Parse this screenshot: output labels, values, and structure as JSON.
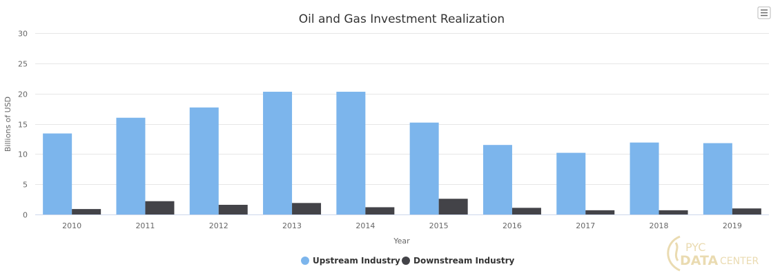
{
  "chart_data": {
    "type": "bar",
    "title": "Oil and Gas Investment Realization",
    "xlabel": "Year",
    "ylabel": "Billions of USD",
    "ylim": [
      0,
      30
    ],
    "yticks": [
      0,
      5,
      10,
      15,
      20,
      25,
      30
    ],
    "grid": true,
    "legend_position": "bottom-center",
    "categories": [
      "2010",
      "2011",
      "2012",
      "2013",
      "2014",
      "2015",
      "2016",
      "2017",
      "2018",
      "2019"
    ],
    "series": [
      {
        "name": "Upstream Industry",
        "color": "#7cb5ec",
        "values": [
          13.4,
          16.0,
          17.7,
          20.3,
          20.3,
          15.2,
          11.5,
          10.2,
          11.9,
          11.8
        ]
      },
      {
        "name": "Downstream Industry",
        "color": "#434348",
        "values": [
          0.9,
          2.2,
          1.6,
          1.9,
          1.2,
          2.6,
          1.1,
          0.7,
          0.7,
          1.0
        ]
      }
    ]
  },
  "watermark": {
    "line1": "PYC",
    "line2": "DATA",
    "line3": "CENTER"
  },
  "menu_icon": "hamburger-menu-icon"
}
